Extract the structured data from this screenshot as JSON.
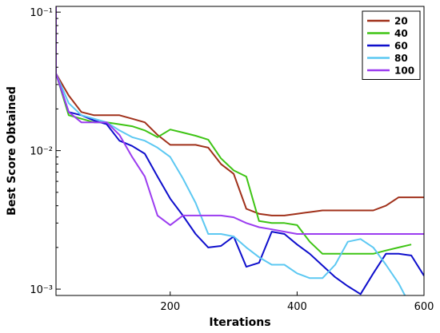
{
  "chart_data": {
    "type": "line",
    "xlabel": "Iterations",
    "ylabel": "Best Score Obtained",
    "xlim": [
      20,
      600
    ],
    "ylim": [
      0.0009,
      0.11
    ],
    "yscale": "log",
    "x_ticks": [
      200,
      400,
      600
    ],
    "x_tick_labels": [
      "200",
      "400",
      "600"
    ],
    "y_ticks": [
      0.001,
      0.01,
      0.1
    ],
    "y_tick_labels": [
      "10⁻³",
      "10⁻²",
      "10⁻¹"
    ],
    "grid": false,
    "legend_position": "top-right",
    "series": [
      {
        "name": "20",
        "color": "#a0301a",
        "x": [
          20,
          40,
          60,
          80,
          100,
          120,
          140,
          160,
          180,
          200,
          220,
          240,
          260,
          280,
          300,
          320,
          340,
          360,
          380,
          400,
          420,
          440,
          460,
          480,
          500,
          520,
          540,
          560,
          580,
          600
        ],
        "y": [
          0.036,
          0.025,
          0.019,
          0.018,
          0.018,
          0.018,
          0.017,
          0.016,
          0.013,
          0.011,
          0.011,
          0.011,
          0.0105,
          0.008,
          0.0068,
          0.0038,
          0.0035,
          0.0034,
          0.0034,
          0.0035,
          0.0036,
          0.0037,
          0.0037,
          0.0037,
          0.0037,
          0.0037,
          0.004,
          0.0046,
          0.0046,
          0.0046
        ]
      },
      {
        "name": "40",
        "color": "#3ec414",
        "x": [
          20,
          40,
          60,
          80,
          100,
          120,
          140,
          160,
          180,
          200,
          220,
          240,
          260,
          280,
          300,
          320,
          340,
          360,
          380,
          400,
          420,
          440,
          460,
          480,
          500,
          520,
          540,
          560,
          580
        ],
        "y": [
          0.036,
          0.018,
          0.017,
          0.016,
          0.016,
          0.0155,
          0.015,
          0.014,
          0.0125,
          0.0142,
          0.0135,
          0.0128,
          0.012,
          0.0088,
          0.0072,
          0.0065,
          0.0031,
          0.003,
          0.003,
          0.0029,
          0.0022,
          0.0018,
          0.0018,
          0.0018,
          0.0018,
          0.0018,
          0.0019,
          0.002,
          0.0021
        ]
      },
      {
        "name": "60",
        "color": "#0e0ecc",
        "x": [
          20,
          40,
          60,
          80,
          100,
          120,
          140,
          160,
          180,
          200,
          220,
          240,
          260,
          280,
          300,
          320,
          340,
          360,
          380,
          400,
          420,
          440,
          460,
          480,
          500,
          520,
          540,
          560,
          580,
          600
        ],
        "y": [
          0.036,
          0.019,
          0.018,
          0.0165,
          0.0155,
          0.0118,
          0.0108,
          0.0095,
          0.0065,
          0.0045,
          0.0034,
          0.0025,
          0.002,
          0.00205,
          0.0024,
          0.00145,
          0.00155,
          0.0026,
          0.0025,
          0.0021,
          0.0018,
          0.00148,
          0.00122,
          0.00105,
          0.00092,
          0.0013,
          0.0018,
          0.0018,
          0.00175,
          0.00125
        ]
      },
      {
        "name": "80",
        "color": "#5cc8f2",
        "x": [
          20,
          40,
          60,
          80,
          100,
          120,
          140,
          160,
          180,
          200,
          220,
          240,
          260,
          280,
          300,
          320,
          340,
          360,
          380,
          400,
          420,
          440,
          460,
          480,
          500,
          520,
          540,
          560,
          570
        ],
        "y": [
          0.036,
          0.022,
          0.018,
          0.017,
          0.016,
          0.014,
          0.0125,
          0.0118,
          0.0105,
          0.009,
          0.0063,
          0.0042,
          0.0025,
          0.0025,
          0.0024,
          0.002,
          0.0017,
          0.0015,
          0.0015,
          0.0013,
          0.0012,
          0.0012,
          0.0015,
          0.0022,
          0.0023,
          0.002,
          0.0015,
          0.0011,
          0.0009
        ]
      },
      {
        "name": "100",
        "color": "#9b3cf0",
        "x": [
          20,
          20,
          40,
          60,
          80,
          100,
          120,
          140,
          160,
          180,
          200,
          220,
          240,
          260,
          280,
          300,
          320,
          340,
          360,
          380,
          400,
          420,
          440,
          460,
          480,
          500,
          520,
          540,
          560,
          580,
          600
        ],
        "y": [
          0.11,
          0.036,
          0.019,
          0.016,
          0.016,
          0.016,
          0.013,
          0.009,
          0.0065,
          0.0034,
          0.0029,
          0.0034,
          0.0034,
          0.0034,
          0.0034,
          0.0033,
          0.003,
          0.0028,
          0.0027,
          0.0026,
          0.0025,
          0.0025,
          0.0025,
          0.0025,
          0.0025,
          0.0025,
          0.0025,
          0.0025,
          0.0025,
          0.0025,
          0.0025
        ]
      }
    ]
  }
}
